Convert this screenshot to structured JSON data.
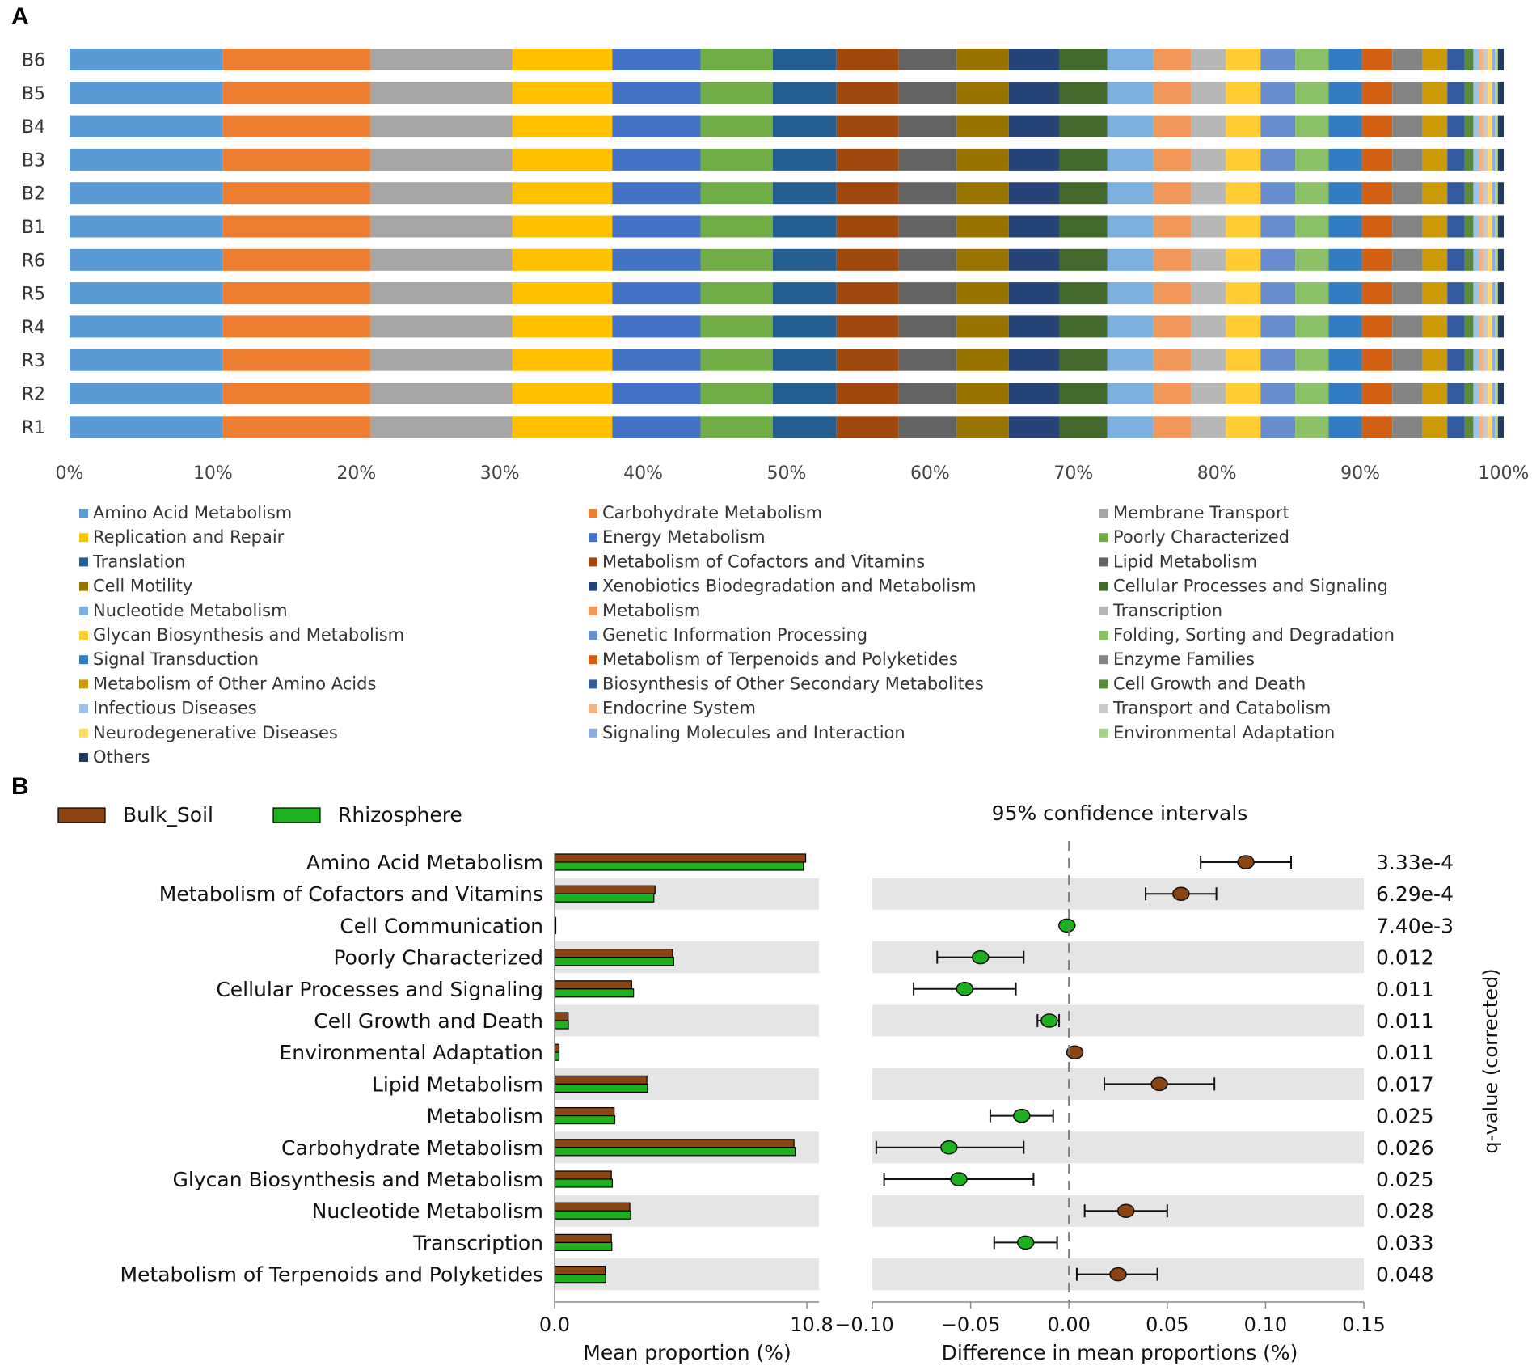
{
  "panel_labels": {
    "a": "A",
    "b": "B"
  },
  "chart_data": [
    {
      "type": "bar",
      "orientation": "horizontal-stacked-100",
      "x_ticks": [
        "0%",
        "10%",
        "20%",
        "30%",
        "40%",
        "50%",
        "60%",
        "70%",
        "80%",
        "90%",
        "100%"
      ],
      "samples": [
        "B6",
        "B5",
        "B4",
        "B3",
        "B2",
        "B1",
        "R6",
        "R5",
        "R4",
        "R3",
        "R2",
        "R1"
      ],
      "series": [
        {
          "name": "Amino Acid Metabolism",
          "color": "#5B9BD5",
          "value": 10.6
        },
        {
          "name": "Carbohydrate Metabolism",
          "color": "#ED7D31",
          "value": 10.2
        },
        {
          "name": "Membrane Transport",
          "color": "#A5A5A5",
          "value": 9.8
        },
        {
          "name": "Replication and Repair",
          "color": "#FFC000",
          "value": 6.9
        },
        {
          "name": "Energy Metabolism",
          "color": "#4472C4",
          "value": 6.1
        },
        {
          "name": "Poorly Characterized",
          "color": "#70AD47",
          "value": 5.0
        },
        {
          "name": "Translation",
          "color": "#255E91",
          "value": 4.4
        },
        {
          "name": "Metabolism of Cofactors and Vitamins",
          "color": "#9E480E",
          "value": 4.3
        },
        {
          "name": "Lipid Metabolism",
          "color": "#636363",
          "value": 4.0
        },
        {
          "name": "Cell Motility",
          "color": "#997300",
          "value": 3.6
        },
        {
          "name": "Xenobiotics Biodegradation and Metabolism",
          "color": "#264478",
          "value": 3.5
        },
        {
          "name": "Cellular Processes and Signaling",
          "color": "#43682B",
          "value": 3.3
        },
        {
          "name": "Nucleotide Metabolism",
          "color": "#7CAFDD",
          "value": 3.2
        },
        {
          "name": "Metabolism",
          "color": "#F1975A",
          "value": 2.6
        },
        {
          "name": "Transcription",
          "color": "#B7B7B7",
          "value": 2.4
        },
        {
          "name": "Glycan Biosynthesis and Metabolism",
          "color": "#FFCD33",
          "value": 2.4
        },
        {
          "name": "Genetic Information Processing",
          "color": "#698ED0",
          "value": 2.4
        },
        {
          "name": "Folding, Sorting and Degradation",
          "color": "#8CC168",
          "value": 2.3
        },
        {
          "name": "Signal Transduction",
          "color": "#327DC2",
          "value": 2.3
        },
        {
          "name": "Metabolism of Terpenoids and Polyketides",
          "color": "#D26012",
          "value": 2.1
        },
        {
          "name": "Enzyme Families",
          "color": "#848484",
          "value": 2.1
        },
        {
          "name": "Metabolism of Other Amino Acids",
          "color": "#CC9A06",
          "value": 1.7
        },
        {
          "name": "Biosynthesis of Other Secondary Metabolites",
          "color": "#335AA1",
          "value": 1.2
        },
        {
          "name": "Cell Growth and Death",
          "color": "#5A8A39",
          "value": 0.6
        },
        {
          "name": "Infectious Diseases",
          "color": "#9DC3E6",
          "value": 0.4
        },
        {
          "name": "Endocrine System",
          "color": "#F4B183",
          "value": 0.3
        },
        {
          "name": "Transport and Catabolism",
          "color": "#C9C9C9",
          "value": 0.3
        },
        {
          "name": "Neurodegenerative Diseases",
          "color": "#FFD966",
          "value": 0.3
        },
        {
          "name": "Signaling Molecules and Interaction",
          "color": "#8FAADC",
          "value": 0.2
        },
        {
          "name": "Environmental Adaptation",
          "color": "#A9D18E",
          "value": 0.2
        },
        {
          "name": "Others",
          "color": "#1F3864",
          "value": 0.4
        }
      ]
    },
    {
      "type": "bar+errorbar",
      "legend": [
        {
          "name": "Bulk_Soil",
          "color": "#8B4513"
        },
        {
          "name": "Rhizosphere",
          "color": "#1DB11D"
        }
      ],
      "ci_title": "95% confidence intervals",
      "left_xlabel": "Mean proportion (%)",
      "left_ticks": [
        "0.0",
        "10.8"
      ],
      "left_xlim": [
        0,
        10.8
      ],
      "right_xlabel": "Difference in mean proportions (%)",
      "right_ticks": [
        "−0.10",
        "−0.05",
        "0.00",
        "0.05",
        "0.10",
        "0.15"
      ],
      "right_xlim": [
        -0.1,
        0.15
      ],
      "q_label": "q-value (corrected)",
      "rows": [
        {
          "name": "Amino Acid Metabolism",
          "bulk": 10.75,
          "rhizo": 10.65,
          "diff": 0.09,
          "low": 0.067,
          "high": 0.113,
          "q": "3.33e-4"
        },
        {
          "name": "Metabolism of Cofactors and Vitamins",
          "bulk": 4.3,
          "rhizo": 4.25,
          "diff": 0.057,
          "low": 0.039,
          "high": 0.075,
          "q": "6.29e-4"
        },
        {
          "name": "Cell Communication",
          "bulk": 0.02,
          "rhizo": 0.02,
          "diff": -0.001,
          "low": -0.002,
          "high": 0.0,
          "q": "7.40e-3"
        },
        {
          "name": "Poorly Characterized",
          "bulk": 5.05,
          "rhizo": 5.1,
          "diff": -0.045,
          "low": -0.067,
          "high": -0.023,
          "q": "0.012"
        },
        {
          "name": "Cellular Processes and Signaling",
          "bulk": 3.3,
          "rhizo": 3.38,
          "diff": -0.053,
          "low": -0.079,
          "high": -0.027,
          "q": "0.011"
        },
        {
          "name": "Cell Growth and Death",
          "bulk": 0.58,
          "rhizo": 0.59,
          "diff": -0.01,
          "low": -0.016,
          "high": -0.005,
          "q": "0.011"
        },
        {
          "name": "Environmental Adaptation",
          "bulk": 0.19,
          "rhizo": 0.19,
          "diff": 0.003,
          "low": 0.0015,
          "high": 0.0045,
          "q": "0.011"
        },
        {
          "name": "Lipid Metabolism",
          "bulk": 3.95,
          "rhizo": 3.98,
          "diff": 0.046,
          "low": 0.018,
          "high": 0.074,
          "q": "0.017"
        },
        {
          "name": "Metabolism",
          "bulk": 2.55,
          "rhizo": 2.58,
          "diff": -0.024,
          "low": -0.04,
          "high": -0.008,
          "q": "0.025"
        },
        {
          "name": "Carbohydrate Metabolism",
          "bulk": 10.25,
          "rhizo": 10.3,
          "diff": -0.061,
          "low": -0.098,
          "high": -0.023,
          "q": "0.026"
        },
        {
          "name": "Glycan Biosynthesis and Metabolism",
          "bulk": 2.43,
          "rhizo": 2.47,
          "diff": -0.056,
          "low": -0.094,
          "high": -0.018,
          "q": "0.025"
        },
        {
          "name": "Nucleotide Metabolism",
          "bulk": 3.22,
          "rhizo": 3.26,
          "diff": 0.029,
          "low": 0.008,
          "high": 0.05,
          "q": "0.028"
        },
        {
          "name": "Transcription",
          "bulk": 2.43,
          "rhizo": 2.45,
          "diff": -0.022,
          "low": -0.038,
          "high": -0.006,
          "q": "0.033"
        },
        {
          "name": "Metabolism of Terpenoids and Polyketides",
          "bulk": 2.17,
          "rhizo": 2.19,
          "diff": 0.025,
          "low": 0.004,
          "high": 0.045,
          "q": "0.048"
        }
      ]
    }
  ]
}
